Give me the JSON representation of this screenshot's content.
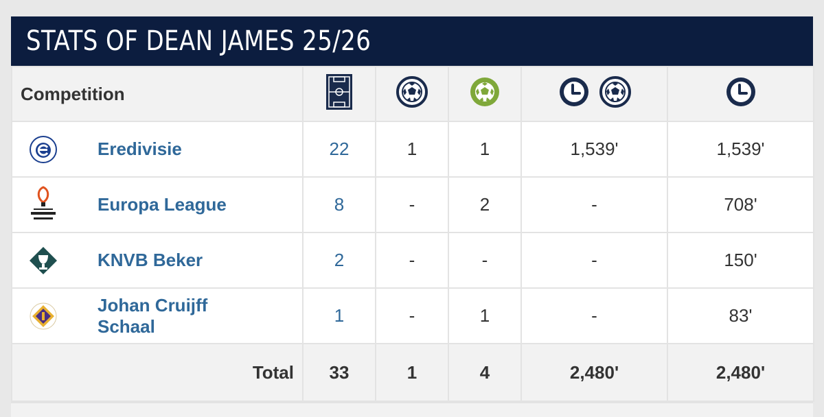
{
  "title": "STATS OF DEAN JAMES 25/26",
  "columns": {
    "competition": "Competition",
    "appearances_icon": "pitch-icon",
    "goals_icon": "ball-icon",
    "assists_icon": "green-ball-icon",
    "minutes_per_goal_icons": [
      "clock-icon",
      "ball-icon"
    ],
    "minutes_icon": "clock-icon"
  },
  "rows": [
    {
      "competition": "Eredivisie",
      "logo": "eredivisie-logo",
      "appearances": "22",
      "goals": "1",
      "assists": "1",
      "minutes_per_goal": "1,539'",
      "minutes": "1,539'"
    },
    {
      "competition": "Europa League",
      "logo": "europa-league-logo",
      "appearances": "8",
      "goals": "-",
      "assists": "2",
      "minutes_per_goal": "-",
      "minutes": "708'"
    },
    {
      "competition": "KNVB Beker",
      "logo": "knvb-beker-logo",
      "appearances": "2",
      "goals": "-",
      "assists": "-",
      "minutes_per_goal": "-",
      "minutes": "150'"
    },
    {
      "competition": "Johan Cruijff Schaal",
      "logo": "johan-cruijff-schaal-logo",
      "appearances": "1",
      "goals": "-",
      "assists": "1",
      "minutes_per_goal": "-",
      "minutes": "83'"
    }
  ],
  "total": {
    "label": "Total",
    "appearances": "33",
    "goals": "1",
    "assists": "4",
    "minutes_per_goal": "2,480'",
    "minutes": "2,480'"
  },
  "colors": {
    "header_bg": "#0c1d3f",
    "link": "#2f6899",
    "assist_green": "#7fa83a",
    "icon_navy": "#1a2b4c"
  }
}
